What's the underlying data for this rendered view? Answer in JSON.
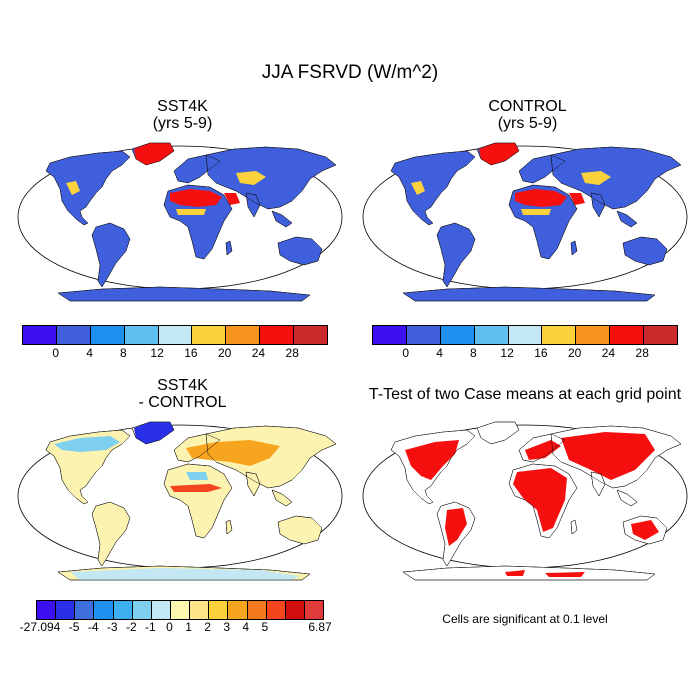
{
  "title": "JJA FSRVD (W/m^2)",
  "panels": {
    "p1": {
      "title": "SST4K\n(yrs 5-9)"
    },
    "p2": {
      "title": "CONTROL\n(yrs 5-9)"
    },
    "p3": {
      "title": "SST4K\n- CONTROL"
    },
    "p4": {
      "title": "T-Test of two Case means at each grid point"
    }
  },
  "colorbar_abs": {
    "colors": [
      "#3d10f0",
      "#3f5fdd",
      "#1f8ff0",
      "#5fbfef",
      "#c4e8f3",
      "#fcd23c",
      "#f7941e",
      "#f50f0f",
      "#cc2a2a"
    ],
    "labels": [
      "0",
      "4",
      "8",
      "12",
      "16",
      "20",
      "24",
      "28"
    ]
  },
  "colorbar_diff": {
    "colors": [
      "#3d10f0",
      "#2a30e8",
      "#3f6fdd",
      "#1f8ff0",
      "#3fb0ef",
      "#7fcfef",
      "#c4e8f3",
      "#fdf7b0",
      "#fde68a",
      "#fcd23c",
      "#f7a51e",
      "#f57a1e",
      "#f5451e",
      "#d10f0f",
      "#e03a3a"
    ],
    "labels": [
      "-27.094",
      "-5",
      "-4",
      "-3",
      "-2",
      "-1",
      "0",
      "1",
      "2",
      "3",
      "4",
      "5",
      "6.87"
    ]
  },
  "note": "Cells are significant at 0.1 level",
  "map_colors": {
    "ocean": "#ffffff",
    "abs_land": "#3f5fdd",
    "abs_warm": "#f50f0f",
    "abs_mid": "#fcd23c",
    "diff_land": "#fdf3b0",
    "diff_warm": "#f7a51e",
    "diff_cool": "#7fcfef",
    "sig": "#f50f0f"
  }
}
